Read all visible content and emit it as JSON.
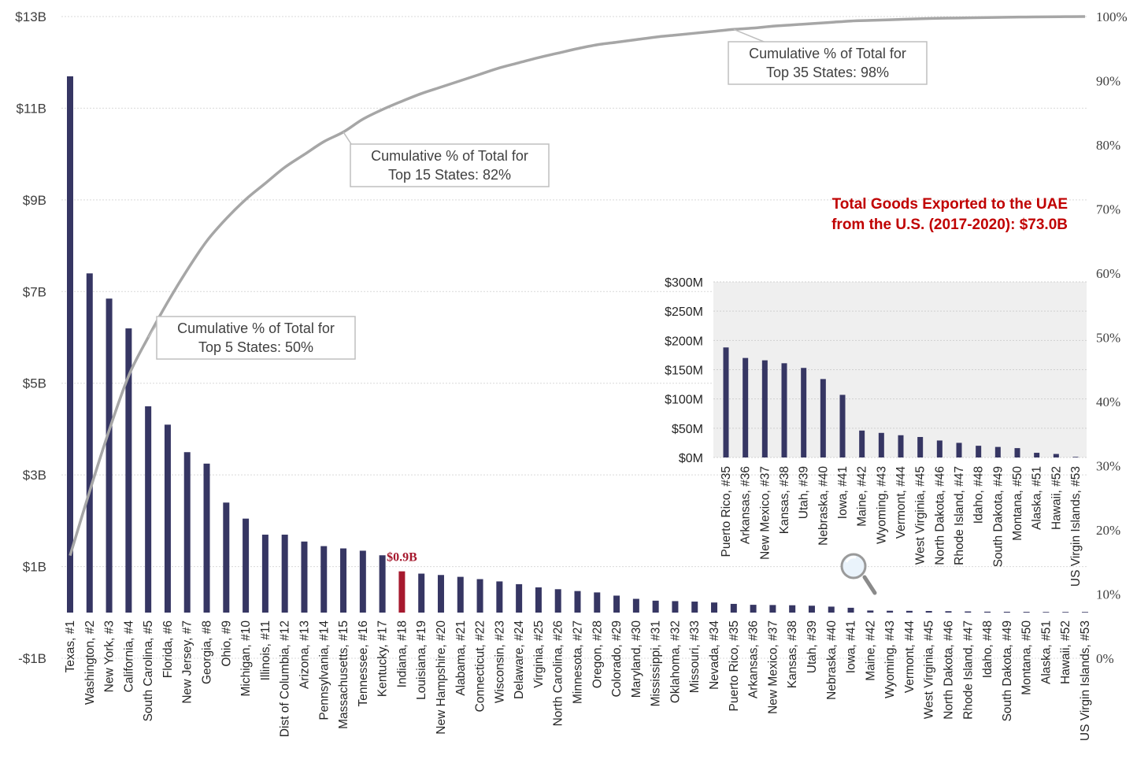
{
  "chart_data": [
    {
      "type": "bar",
      "title": "",
      "y_tick_labels": [
        "$13B",
        "$11B",
        "$9B",
        "$7B",
        "$5B",
        "$3B",
        "$1B",
        "-$1B"
      ],
      "y2_tick_labels": [
        "100%",
        "90%",
        "80%",
        "70%",
        "60%",
        "50%",
        "40%",
        "30%",
        "20%",
        "10%",
        "0%"
      ],
      "ylim": [
        -1,
        13
      ],
      "y2lim": [
        0,
        100
      ],
      "grid": true,
      "categories": [
        "Texas, #1",
        "Washington, #2",
        "New York, #3",
        "California, #4",
        "South Carolina, #5",
        "Florida, #6",
        "New Jersey, #7",
        "Georgia, #8",
        "Ohio, #9",
        "Michigan, #10",
        "Illinois, #11",
        "Dist of Columbia, #12",
        "Arizona, #13",
        "Pennsylvania, #14",
        "Massachusetts, #15",
        "Tennessee, #16",
        "Kentucky, #17",
        "Indiana, #18",
        "Louisiana, #19",
        "New Hampshire, #20",
        "Alabama, #21",
        "Connecticut, #22",
        "Wisconsin, #23",
        "Delaware, #24",
        "Virginia, #25",
        "North Carolina, #26",
        "Minnesota, #27",
        "Oregon, #28",
        "Colorado, #29",
        "Maryland, #30",
        "Mississippi, #31",
        "Oklahoma, #32",
        "Missouri, #33",
        "Nevada, #34",
        "Puerto Rico, #35",
        "Arkansas, #36",
        "New Mexico, #37",
        "Kansas, #38",
        "Utah, #39",
        "Nebraska, #40",
        "Iowa, #41",
        "Maine, #42",
        "Wyoming, #43",
        "Vermont, #44",
        "West Virginia, #45",
        "North Dakota, #46",
        "Rhode Island, #47",
        "Idaho, #48",
        "South Dakota, #49",
        "Montana, #50",
        "Alaska, #51",
        "Hawaii, #52",
        "US Virgin Islands, #53"
      ],
      "series": [
        {
          "values": [
            11.7,
            7.4,
            6.85,
            6.2,
            4.5,
            4.1,
            3.5,
            3.25,
            2.4,
            2.05,
            1.7,
            1.7,
            1.55,
            1.45,
            1.4,
            1.35,
            1.25,
            0.9,
            0.85,
            0.82,
            0.78,
            0.73,
            0.68,
            0.62,
            0.55,
            0.51,
            0.47,
            0.44,
            0.37,
            0.3,
            0.26,
            0.25,
            0.24,
            0.22,
            0.19,
            0.17,
            0.165,
            0.16,
            0.15,
            0.13,
            0.105,
            0.045,
            0.04,
            0.038,
            0.035,
            0.03,
            0.025,
            0.02,
            0.018,
            0.016,
            0.009,
            0.007,
            0.001
          ],
          "color": "#363663",
          "highlight_index": 17,
          "highlight_color": "#a6192e"
        },
        {
          "type": "line",
          "axis": "right",
          "color": "#a6a6a6",
          "values": [
            16,
            26,
            35.5,
            44,
            50,
            55.5,
            60.5,
            65,
            68.5,
            71.5,
            74,
            76.5,
            78.5,
            80.5,
            82,
            84,
            85.5,
            86.8,
            88,
            89,
            90,
            91,
            92,
            92.8,
            93.6,
            94.3,
            95,
            95.6,
            96,
            96.4,
            96.8,
            97.1,
            97.4,
            97.7,
            98,
            98.2,
            98.5,
            98.7,
            98.9,
            99.1,
            99.3,
            99.4,
            99.5,
            99.6,
            99.7,
            99.75,
            99.8,
            99.85,
            99.9,
            99.93,
            99.96,
            99.98,
            100
          ]
        }
      ],
      "data_labels": [
        {
          "index": 17,
          "text": "$0.9B"
        }
      ],
      "annotations": [
        [
          "Cumulative % of Total for",
          "Top 5 States: 50%"
        ],
        [
          "Cumulative % of Total for",
          "Top 15 States: 82%"
        ],
        [
          "Cumulative % of Total for",
          "Top 35 States: 98%"
        ]
      ],
      "subtitle_lines": [
        "Total Goods Exported to the UAE",
        "from the U.S. (2017-2020): $73.0B"
      ]
    },
    {
      "type": "bar",
      "y_tick_labels": [
        "$300M",
        "$250M",
        "$200M",
        "$150M",
        "$100M",
        "$50M",
        "$0M"
      ],
      "ylim": [
        0,
        300
      ],
      "background": "#efefef",
      "categories": [
        "Puerto Rico, #35",
        "Arkansas, #36",
        "New Mexico, #37",
        "Kansas, #38",
        "Utah, #39",
        "Nebraska, #40",
        "Iowa, #41",
        "Maine, #42",
        "Wyoming, #43",
        "Vermont, #44",
        "West Virginia, #45",
        "North Dakota, #46",
        "Rhode Island, #47",
        "Idaho, #48",
        "South Dakota, #49",
        "Montana, #50",
        "Alaska, #51",
        "Hawaii, #52",
        "US Virgin Islands, #53"
      ],
      "series": [
        {
          "color": "#363663",
          "values": [
            188,
            170,
            166,
            161,
            153,
            134,
            107,
            46,
            42,
            38,
            35,
            29,
            25,
            20,
            18,
            16,
            8,
            6,
            0.5
          ]
        }
      ]
    }
  ],
  "icons": {
    "zoom": "magnifier-icon"
  }
}
